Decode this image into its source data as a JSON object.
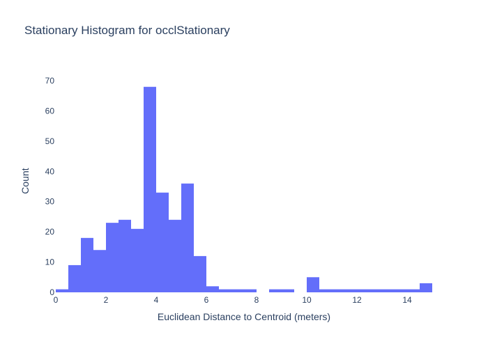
{
  "chart_data": {
    "type": "bar",
    "title": "Stationary Histogram for occlStationary",
    "xlabel": "Euclidean Distance to Centroid (meters)",
    "ylabel": "Count",
    "xlim": [
      0,
      15
    ],
    "ylim": [
      0,
      73.7
    ],
    "bin_width": 0.5,
    "bins": [
      {
        "x0": 0.0,
        "count": 1
      },
      {
        "x0": 0.5,
        "count": 9
      },
      {
        "x0": 1.0,
        "count": 18
      },
      {
        "x0": 1.5,
        "count": 14
      },
      {
        "x0": 2.0,
        "count": 23
      },
      {
        "x0": 2.5,
        "count": 24
      },
      {
        "x0": 3.0,
        "count": 21
      },
      {
        "x0": 3.5,
        "count": 68
      },
      {
        "x0": 4.0,
        "count": 33
      },
      {
        "x0": 4.5,
        "count": 24
      },
      {
        "x0": 5.0,
        "count": 36
      },
      {
        "x0": 5.5,
        "count": 12
      },
      {
        "x0": 6.0,
        "count": 2
      },
      {
        "x0": 6.5,
        "count": 1
      },
      {
        "x0": 7.0,
        "count": 1
      },
      {
        "x0": 7.5,
        "count": 1
      },
      {
        "x0": 8.0,
        "count": 0
      },
      {
        "x0": 8.5,
        "count": 1
      },
      {
        "x0": 9.0,
        "count": 1
      },
      {
        "x0": 9.5,
        "count": 0
      },
      {
        "x0": 10.0,
        "count": 5
      },
      {
        "x0": 10.5,
        "count": 1
      },
      {
        "x0": 11.0,
        "count": 1
      },
      {
        "x0": 11.5,
        "count": 1
      },
      {
        "x0": 12.0,
        "count": 1
      },
      {
        "x0": 12.5,
        "count": 1
      },
      {
        "x0": 13.0,
        "count": 1
      },
      {
        "x0": 13.5,
        "count": 1
      },
      {
        "x0": 14.0,
        "count": 1
      },
      {
        "x0": 14.5,
        "count": 3
      }
    ],
    "x_ticks": [
      0,
      2,
      4,
      6,
      8,
      10,
      12,
      14
    ],
    "y_ticks": [
      0,
      10,
      20,
      30,
      40,
      50,
      60,
      70
    ],
    "bar_color": "#636efa",
    "background_color": "#ffffff",
    "grid": false,
    "legend": "none"
  }
}
